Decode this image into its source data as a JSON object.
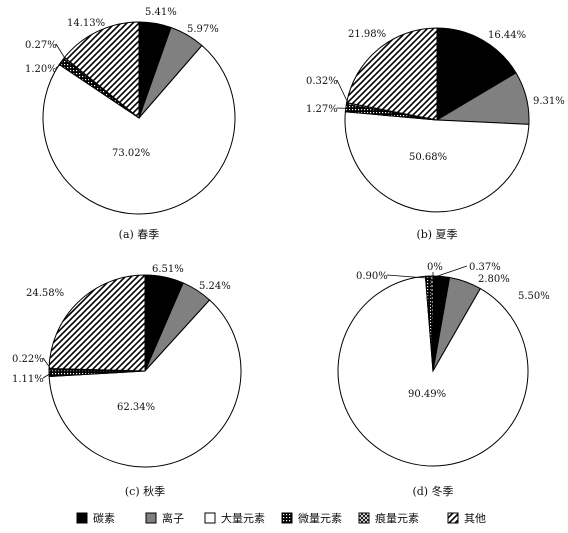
{
  "categories": [
    "碳素",
    "离子",
    "大量元素",
    "微量元素",
    "痕量元素",
    "其他"
  ],
  "styles": {
    "碳素": "#000000",
    "离子": "#808080",
    "大量元素": "#ffffff",
    "微量元素": "pattern-dots",
    "痕量元素": "pattern-cross",
    "其他": "pattern-hatch"
  },
  "chart_data": [
    {
      "type": "pie",
      "title": "(a) 春季",
      "slices": [
        {
          "category": "碳素",
          "value": 5.41,
          "label": "5.41%"
        },
        {
          "category": "离子",
          "value": 5.97,
          "label": "5.97%"
        },
        {
          "category": "大量元素",
          "value": 73.02,
          "label": "73.02%"
        },
        {
          "category": "微量元素",
          "value": 1.2,
          "label": "1.20%"
        },
        {
          "category": "痕量元素",
          "value": 0.27,
          "label": "0.27%"
        },
        {
          "category": "其他",
          "value": 14.13,
          "label": "14.13%"
        }
      ]
    },
    {
      "type": "pie",
      "title": "(b) 夏季",
      "slices": [
        {
          "category": "碳素",
          "value": 16.44,
          "label": "16.44%"
        },
        {
          "category": "离子",
          "value": 9.31,
          "label": "9.31%"
        },
        {
          "category": "大量元素",
          "value": 50.68,
          "label": "50.68%"
        },
        {
          "category": "微量元素",
          "value": 1.27,
          "label": "1.27%"
        },
        {
          "category": "痕量元素",
          "value": 0.32,
          "label": "0.32%"
        },
        {
          "category": "其他",
          "value": 21.98,
          "label": "21.98%"
        }
      ]
    },
    {
      "type": "pie",
      "title": "(c) 秋季",
      "slices": [
        {
          "category": "碳素",
          "value": 6.51,
          "label": "6.51%"
        },
        {
          "category": "离子",
          "value": 5.24,
          "label": "5.24%"
        },
        {
          "category": "大量元素",
          "value": 62.34,
          "label": "62.34%"
        },
        {
          "category": "微量元素",
          "value": 1.11,
          "label": "1.11%"
        },
        {
          "category": "痕量元素",
          "value": 0.22,
          "label": "0.22%"
        },
        {
          "category": "其他",
          "value": 24.58,
          "label": "24.58%"
        }
      ]
    },
    {
      "type": "pie",
      "title": "(d) 冬季",
      "slices": [
        {
          "category": "碳素",
          "value": 2.8,
          "label": "2.80%"
        },
        {
          "category": "离子",
          "value": 5.5,
          "label": "5.50%"
        },
        {
          "category": "大量元素",
          "value": 90.49,
          "label": "90.49%"
        },
        {
          "category": "微量元素",
          "value": 0.9,
          "label": "0.90%"
        },
        {
          "category": "痕量元素",
          "value": 0.37,
          "label": "0.37%"
        },
        {
          "category": "其他",
          "value": 0,
          "label": "0%"
        }
      ]
    }
  ]
}
